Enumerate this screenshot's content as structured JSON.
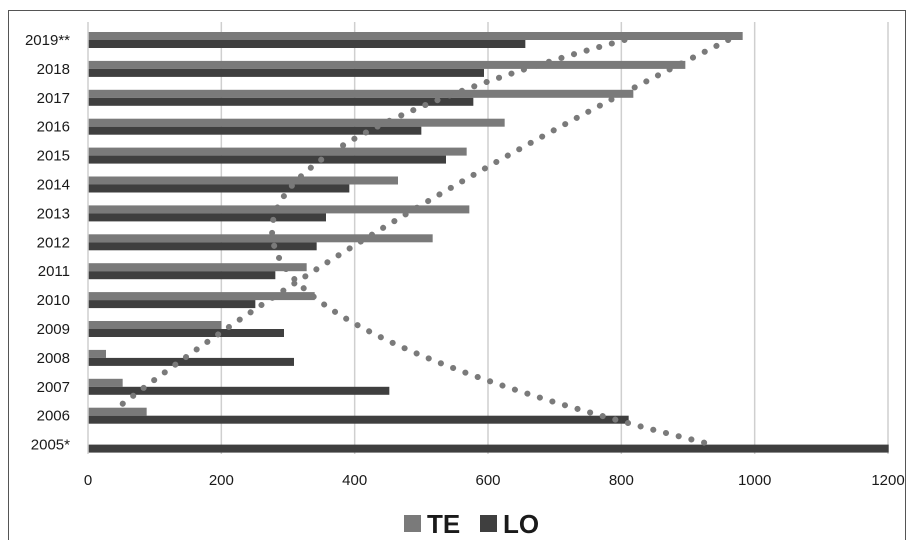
{
  "chart_data": {
    "type": "bar",
    "orientation": "horizontal",
    "categories": [
      "2019**",
      "2018",
      "2017",
      "2016",
      "2015",
      "2014",
      "2013",
      "2012",
      "2011",
      "2010",
      "2009",
      "2008",
      "2007",
      "2006",
      "2005*"
    ],
    "series": [
      {
        "name": "TE",
        "color": "#7a7a7a",
        "values": [
          982,
          896,
          818,
          625,
          568,
          465,
          572,
          517,
          328,
          340,
          200,
          27,
          52,
          88,
          0
        ]
      },
      {
        "name": "LO",
        "color": "#3f3f3f",
        "values": [
          656,
          594,
          578,
          500,
          537,
          392,
          357,
          343,
          281,
          251,
          294,
          309,
          452,
          811,
          1201
        ]
      }
    ],
    "trendline_color": "#7a7a7a",
    "x_ticks": [
      "0",
      "200",
      "400",
      "600",
      "800",
      "1000",
      "1200"
    ],
    "xlim": [
      0,
      1200
    ],
    "grid": "vertical",
    "legend": "bottom-center"
  }
}
